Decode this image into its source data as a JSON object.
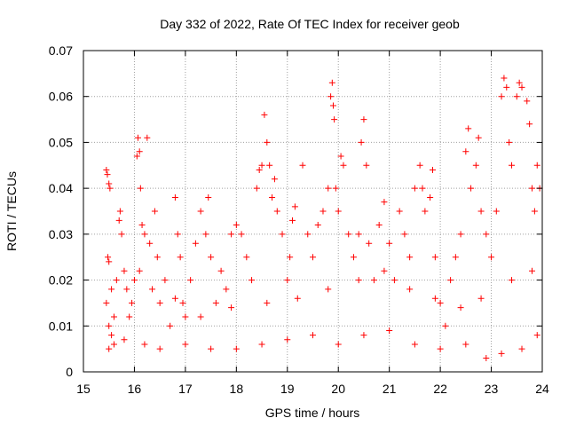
{
  "chart_data": {
    "type": "scatter",
    "title": "Day 332 of 2022, Rate Of TEC Index for receiver geob",
    "xlabel": "GPS time / hours",
    "ylabel": "ROTI / TECUs",
    "xlim": [
      15,
      24
    ],
    "ylim": [
      0,
      0.07
    ],
    "x_ticks": [
      15,
      16,
      17,
      18,
      19,
      20,
      21,
      22,
      23,
      24
    ],
    "y_ticks": [
      0,
      0.01,
      0.02,
      0.03,
      0.04,
      0.05,
      0.06,
      0.07
    ],
    "y_tick_labels": [
      "0",
      "0.01",
      "0.02",
      "0.03",
      "0.04",
      "0.05",
      "0.06",
      "0.07"
    ],
    "grid": true,
    "marker": "plus",
    "color": "#ff0000",
    "series": [
      {
        "points": [
          [
            15.45,
            0.044
          ],
          [
            15.47,
            0.043
          ],
          [
            15.5,
            0.041
          ],
          [
            15.52,
            0.04
          ],
          [
            15.48,
            0.025
          ],
          [
            15.5,
            0.024
          ],
          [
            15.45,
            0.015
          ],
          [
            15.5,
            0.01
          ],
          [
            15.55,
            0.008
          ],
          [
            15.6,
            0.012
          ],
          [
            15.65,
            0.02
          ],
          [
            15.7,
            0.033
          ],
          [
            15.72,
            0.035
          ],
          [
            15.75,
            0.03
          ],
          [
            15.8,
            0.022
          ],
          [
            15.85,
            0.018
          ],
          [
            15.9,
            0.012
          ],
          [
            15.95,
            0.015
          ],
          [
            16.0,
            0.02
          ],
          [
            16.05,
            0.047
          ],
          [
            16.07,
            0.051
          ],
          [
            16.1,
            0.048
          ],
          [
            16.12,
            0.04
          ],
          [
            16.15,
            0.032
          ],
          [
            16.2,
            0.03
          ],
          [
            16.25,
            0.051
          ],
          [
            16.3,
            0.028
          ],
          [
            16.35,
            0.018
          ],
          [
            16.4,
            0.035
          ],
          [
            16.45,
            0.025
          ],
          [
            16.5,
            0.015
          ],
          [
            16.6,
            0.02
          ],
          [
            16.7,
            0.01
          ],
          [
            16.8,
            0.038
          ],
          [
            16.85,
            0.03
          ],
          [
            16.9,
            0.025
          ],
          [
            16.95,
            0.015
          ],
          [
            17.0,
            0.012
          ],
          [
            17.1,
            0.02
          ],
          [
            17.2,
            0.028
          ],
          [
            17.3,
            0.035
          ],
          [
            17.4,
            0.03
          ],
          [
            17.45,
            0.038
          ],
          [
            17.5,
            0.025
          ],
          [
            17.6,
            0.015
          ],
          [
            17.7,
            0.022
          ],
          [
            17.8,
            0.018
          ],
          [
            17.9,
            0.03
          ],
          [
            18.0,
            0.032
          ],
          [
            18.1,
            0.03
          ],
          [
            18.2,
            0.025
          ],
          [
            18.3,
            0.02
          ],
          [
            18.4,
            0.04
          ],
          [
            18.45,
            0.044
          ],
          [
            18.5,
            0.045
          ],
          [
            18.55,
            0.056
          ],
          [
            18.6,
            0.05
          ],
          [
            18.65,
            0.045
          ],
          [
            18.7,
            0.038
          ],
          [
            18.75,
            0.042
          ],
          [
            18.8,
            0.035
          ],
          [
            18.9,
            0.03
          ],
          [
            19.0,
            0.02
          ],
          [
            19.05,
            0.025
          ],
          [
            19.1,
            0.033
          ],
          [
            19.15,
            0.036
          ],
          [
            19.3,
            0.045
          ],
          [
            19.4,
            0.03
          ],
          [
            19.5,
            0.025
          ],
          [
            19.6,
            0.032
          ],
          [
            19.7,
            0.035
          ],
          [
            19.8,
            0.04
          ],
          [
            19.85,
            0.06
          ],
          [
            19.88,
            0.063
          ],
          [
            19.9,
            0.058
          ],
          [
            19.92,
            0.055
          ],
          [
            19.95,
            0.04
          ],
          [
            20.0,
            0.035
          ],
          [
            20.05,
            0.047
          ],
          [
            20.1,
            0.045
          ],
          [
            20.2,
            0.03
          ],
          [
            20.3,
            0.025
          ],
          [
            20.4,
            0.03
          ],
          [
            20.45,
            0.05
          ],
          [
            20.5,
            0.055
          ],
          [
            20.55,
            0.045
          ],
          [
            20.6,
            0.028
          ],
          [
            20.7,
            0.02
          ],
          [
            20.8,
            0.032
          ],
          [
            20.9,
            0.037
          ],
          [
            21.0,
            0.028
          ],
          [
            21.1,
            0.02
          ],
          [
            21.2,
            0.035
          ],
          [
            21.3,
            0.03
          ],
          [
            21.4,
            0.025
          ],
          [
            21.5,
            0.04
          ],
          [
            21.6,
            0.045
          ],
          [
            21.65,
            0.04
          ],
          [
            21.7,
            0.035
          ],
          [
            21.8,
            0.038
          ],
          [
            21.85,
            0.044
          ],
          [
            21.9,
            0.025
          ],
          [
            22.0,
            0.015
          ],
          [
            22.1,
            0.01
          ],
          [
            22.2,
            0.02
          ],
          [
            22.3,
            0.025
          ],
          [
            22.4,
            0.03
          ],
          [
            22.5,
            0.048
          ],
          [
            22.55,
            0.053
          ],
          [
            22.6,
            0.04
          ],
          [
            22.7,
            0.045
          ],
          [
            22.75,
            0.051
          ],
          [
            22.8,
            0.035
          ],
          [
            22.9,
            0.03
          ],
          [
            23.0,
            0.025
          ],
          [
            23.1,
            0.035
          ],
          [
            23.2,
            0.06
          ],
          [
            23.25,
            0.064
          ],
          [
            23.3,
            0.062
          ],
          [
            23.35,
            0.05
          ],
          [
            23.4,
            0.045
          ],
          [
            23.5,
            0.06
          ],
          [
            23.55,
            0.063
          ],
          [
            23.6,
            0.062
          ],
          [
            23.7,
            0.059
          ],
          [
            23.75,
            0.054
          ],
          [
            23.8,
            0.04
          ],
          [
            23.85,
            0.035
          ],
          [
            23.9,
            0.045
          ],
          [
            23.95,
            0.04
          ],
          [
            15.5,
            0.005
          ],
          [
            15.6,
            0.006
          ],
          [
            15.8,
            0.007
          ],
          [
            16.2,
            0.006
          ],
          [
            16.5,
            0.005
          ],
          [
            17.0,
            0.006
          ],
          [
            17.5,
            0.005
          ],
          [
            18.0,
            0.005
          ],
          [
            18.5,
            0.006
          ],
          [
            19.0,
            0.007
          ],
          [
            19.5,
            0.008
          ],
          [
            20.0,
            0.006
          ],
          [
            20.5,
            0.008
          ],
          [
            21.0,
            0.009
          ],
          [
            21.5,
            0.006
          ],
          [
            22.0,
            0.005
          ],
          [
            22.5,
            0.006
          ],
          [
            22.9,
            0.003
          ],
          [
            23.2,
            0.004
          ],
          [
            23.6,
            0.005
          ],
          [
            23.9,
            0.008
          ],
          [
            15.55,
            0.018
          ],
          [
            16.1,
            0.022
          ],
          [
            16.8,
            0.016
          ],
          [
            17.3,
            0.012
          ],
          [
            17.9,
            0.014
          ],
          [
            18.6,
            0.015
          ],
          [
            19.2,
            0.016
          ],
          [
            19.8,
            0.018
          ],
          [
            20.4,
            0.02
          ],
          [
            20.9,
            0.022
          ],
          [
            21.4,
            0.018
          ],
          [
            21.9,
            0.016
          ],
          [
            22.4,
            0.014
          ],
          [
            22.8,
            0.016
          ],
          [
            23.4,
            0.02
          ],
          [
            23.8,
            0.022
          ]
        ]
      }
    ]
  }
}
